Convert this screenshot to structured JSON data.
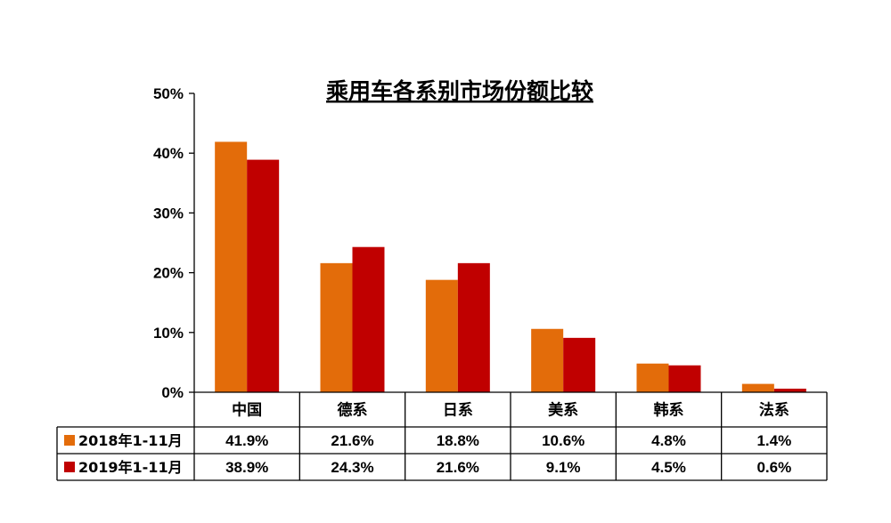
{
  "chart_data": {
    "type": "bar",
    "title": "乘用车各系别市场份额比较",
    "categories": [
      "中国",
      "德系",
      "日系",
      "美系",
      "韩系",
      "法系"
    ],
    "series": [
      {
        "name": "2018年1-11月",
        "color": "#E36C0A",
        "values": [
          41.9,
          21.6,
          18.8,
          10.6,
          4.8,
          1.4
        ],
        "labels": [
          "41.9%",
          "21.6%",
          "18.8%",
          "10.6%",
          "4.8%",
          "1.4%"
        ]
      },
      {
        "name": "2019年1-11月",
        "color": "#C00000",
        "values": [
          38.9,
          24.3,
          21.6,
          9.1,
          4.5,
          0.6
        ],
        "labels": [
          "38.9%",
          "24.3%",
          "21.6%",
          "9.1%",
          "4.5%",
          "0.6%"
        ]
      }
    ],
    "ylim": [
      0,
      50
    ],
    "yticks": [
      "0%",
      "10%",
      "20%",
      "30%",
      "40%",
      "50%"
    ],
    "grid": false,
    "legend": "data-table"
  }
}
